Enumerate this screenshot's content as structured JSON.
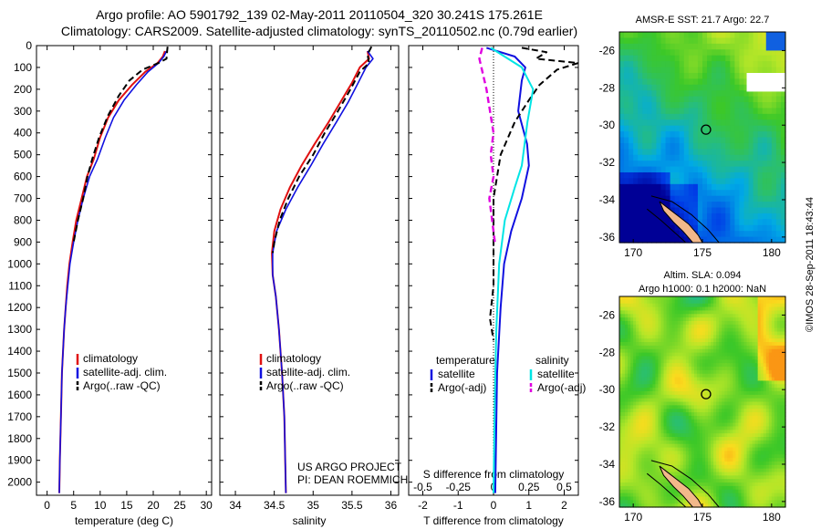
{
  "header": {
    "line1": "Argo profile: AO 5901792_139 02-May-2011 20110504_320 30.241S 175.261E",
    "line2": "Climatology: CARS2009. Satellite-adjusted climatology: synTS_20110502.nc (0.79d earlier)"
  },
  "watermark": "©IMOS 28-Sep-2011 18:43:44",
  "credit": {
    "line1": "US ARGO PROJECT",
    "line2": "PI: DEAN ROEMMICH"
  },
  "colors": {
    "climatology": "#e01010",
    "satellite": "#1010e0",
    "argo": "#000000",
    "satellite_s": "#00e5e5",
    "argo_s": "#e000e0"
  },
  "chart_data": [
    {
      "type": "line",
      "xlabel": "temperature (deg C)",
      "xlim": [
        -2,
        31
      ],
      "xticks": [
        0,
        5,
        10,
        15,
        20,
        25,
        30
      ],
      "ylim": [
        2060,
        0
      ],
      "yticks": [
        0,
        100,
        200,
        300,
        400,
        500,
        600,
        700,
        800,
        900,
        1000,
        1100,
        1200,
        1300,
        1400,
        1500,
        1600,
        1700,
        1800,
        1900,
        2000
      ],
      "legend": [
        "climatology",
        "satellite-adj. clim.",
        "Argo(..raw -QC)"
      ],
      "legend_position": "lower-middle",
      "series": [
        {
          "name": "climatology",
          "points": [
            [
              22.2,
              25
            ],
            [
              21.8,
              50
            ],
            [
              20.8,
              80
            ],
            [
              18.5,
              120
            ],
            [
              16,
              180
            ],
            [
              13.5,
              250
            ],
            [
              11.5,
              330
            ],
            [
              10,
              420
            ],
            [
              8.8,
              520
            ],
            [
              7.5,
              600
            ],
            [
              6.5,
              700
            ],
            [
              5.5,
              800
            ],
            [
              4.8,
              900
            ],
            [
              4.2,
              1000
            ],
            [
              3.8,
              1100
            ],
            [
              3.5,
              1200
            ],
            [
              3.2,
              1300
            ],
            [
              3,
              1400
            ],
            [
              2.8,
              1500
            ],
            [
              2.6,
              1700
            ],
            [
              2.4,
              1900
            ],
            [
              2.3,
              2050
            ]
          ]
        },
        {
          "name": "satellite-adj. clim.",
          "points": [
            [
              22.5,
              25
            ],
            [
              22,
              50
            ],
            [
              21,
              80
            ],
            [
              19,
              120
            ],
            [
              16.8,
              180
            ],
            [
              14.5,
              250
            ],
            [
              12.5,
              330
            ],
            [
              11,
              420
            ],
            [
              9.5,
              520
            ],
            [
              8,
              600
            ],
            [
              6.8,
              700
            ],
            [
              5.8,
              800
            ],
            [
              5,
              900
            ],
            [
              4.3,
              1000
            ],
            [
              3.9,
              1100
            ],
            [
              3.5,
              1200
            ],
            [
              3.2,
              1300
            ],
            [
              3,
              1400
            ],
            [
              2.8,
              1500
            ],
            [
              2.6,
              1700
            ],
            [
              2.4,
              1900
            ],
            [
              2.3,
              2050
            ]
          ]
        },
        {
          "name": "Argo(..raw -QC)",
          "points": [
            [
              22.7,
              5
            ],
            [
              22.6,
              30
            ],
            [
              22.5,
              60
            ],
            [
              21,
              80
            ],
            [
              18,
              110
            ],
            [
              15.5,
              160
            ],
            [
              13.5,
              230
            ],
            [
              11.5,
              320
            ],
            [
              9.8,
              420
            ],
            [
              8.5,
              520
            ],
            [
              7.6,
              600
            ],
            [
              6.8,
              700
            ],
            [
              5.8,
              800
            ],
            [
              5,
              900
            ]
          ]
        }
      ]
    },
    {
      "type": "line",
      "xlabel": "salinity",
      "xlim": [
        33.8,
        36.1
      ],
      "xticks": [
        34,
        34.5,
        35,
        35.5,
        36
      ],
      "ylim": [
        2060,
        0
      ],
      "legend": [
        "climatology",
        "satellite-adj. clim.",
        "Argo(..raw -QC)"
      ],
      "legend_position": "lower-middle",
      "series": [
        {
          "name": "climatology",
          "points": [
            [
              35.7,
              25
            ],
            [
              35.72,
              60
            ],
            [
              35.6,
              100
            ],
            [
              35.5,
              170
            ],
            [
              35.35,
              260
            ],
            [
              35.2,
              350
            ],
            [
              35.02,
              450
            ],
            [
              34.85,
              550
            ],
            [
              34.7,
              650
            ],
            [
              34.58,
              750
            ],
            [
              34.5,
              850
            ],
            [
              34.47,
              950
            ],
            [
              34.48,
              1050
            ],
            [
              34.52,
              1150
            ],
            [
              34.56,
              1300
            ],
            [
              34.6,
              1500
            ],
            [
              34.63,
              1700
            ],
            [
              34.65,
              2050
            ]
          ]
        },
        {
          "name": "satellite-adj. clim.",
          "points": [
            [
              35.7,
              25
            ],
            [
              35.77,
              60
            ],
            [
              35.68,
              100
            ],
            [
              35.58,
              170
            ],
            [
              35.45,
              260
            ],
            [
              35.3,
              350
            ],
            [
              35.13,
              450
            ],
            [
              34.97,
              550
            ],
            [
              34.8,
              650
            ],
            [
              34.65,
              750
            ],
            [
              34.53,
              850
            ],
            [
              34.48,
              950
            ],
            [
              34.48,
              1050
            ],
            [
              34.52,
              1150
            ],
            [
              34.56,
              1300
            ],
            [
              34.6,
              1500
            ],
            [
              34.63,
              1700
            ],
            [
              34.65,
              2050
            ]
          ]
        },
        {
          "name": "Argo(..raw -QC)",
          "points": [
            [
              35.75,
              5
            ],
            [
              35.7,
              40
            ],
            [
              35.72,
              80
            ],
            [
              35.6,
              120
            ],
            [
              35.48,
              200
            ],
            [
              35.32,
              300
            ],
            [
              35.15,
              400
            ],
            [
              35,
              500
            ],
            [
              34.82,
              600
            ],
            [
              34.68,
              700
            ],
            [
              34.57,
              800
            ],
            [
              34.5,
              900
            ],
            [
              34.48,
              950
            ]
          ]
        }
      ]
    },
    {
      "type": "line",
      "xlabel": "T difference from climatology",
      "xlabel2": "S difference from climatology",
      "xlim": [
        -2.4,
        2.4
      ],
      "xticks": [
        -2,
        -1,
        0,
        1,
        2
      ],
      "xticks2": [
        -0.5,
        -0.25,
        0,
        0.25,
        0.5
      ],
      "xticks2_labels": [
        "-0.5",
        "-0.25",
        "0",
        "0.25",
        "0.5"
      ],
      "ylim": [
        2060,
        0
      ],
      "legend_groups": [
        {
          "title": "temperature",
          "entries": [
            "satellite",
            "Argo(-adj)"
          ]
        },
        {
          "title": "salinity",
          "entries": [
            "satellite",
            "Argo(-adj)"
          ]
        }
      ],
      "legend_position": "lower-middle",
      "series": [
        {
          "name": "temperature satellite",
          "points": [
            [
              -0.2,
              10
            ],
            [
              0.6,
              50
            ],
            [
              0.9,
              100
            ],
            [
              0.8,
              160
            ],
            [
              0.7,
              300
            ],
            [
              0.95,
              450
            ],
            [
              1,
              550
            ],
            [
              0.8,
              700
            ],
            [
              0.5,
              850
            ],
            [
              0.3,
              1000
            ],
            [
              0.2,
              1200
            ],
            [
              0.1,
              1500
            ],
            [
              0.05,
              2050
            ]
          ]
        },
        {
          "name": "temperature Argo(-adj)",
          "points": [
            [
              0.8,
              10
            ],
            [
              1.5,
              30
            ],
            [
              1.2,
              60
            ],
            [
              2.4,
              80
            ],
            [
              1.8,
              110
            ],
            [
              1.3,
              180
            ],
            [
              1,
              250
            ],
            [
              0.6,
              350
            ],
            [
              0.2,
              500
            ],
            [
              0,
              700
            ],
            [
              0,
              900
            ],
            [
              0,
              1100
            ],
            [
              -0.1,
              1250
            ],
            [
              0,
              1350
            ]
          ]
        },
        {
          "name": "salinity satellite",
          "points": [
            [
              -0.02,
              10
            ],
            [
              0.2,
              100
            ],
            [
              0.28,
              200
            ],
            [
              0.24,
              350
            ],
            [
              0.22,
              450
            ],
            [
              0.2,
              550
            ],
            [
              0.15,
              650
            ],
            [
              0.08,
              800
            ],
            [
              0.04,
              1000
            ],
            [
              0.02,
              1300
            ],
            [
              0.01,
              1600
            ],
            [
              0,
              2050
            ]
          ]
        },
        {
          "name": "salinity Argo(-adj)",
          "points": [
            [
              -0.08,
              10
            ],
            [
              -0.1,
              60
            ],
            [
              -0.05,
              200
            ],
            [
              0,
              400
            ],
            [
              -0.02,
              500
            ],
            [
              0,
              600
            ],
            [
              -0.03,
              700
            ],
            [
              0.01,
              900
            ]
          ]
        }
      ]
    },
    {
      "type": "heatmap",
      "title": "AMSR-E SST: 21.7 Argo: 22.7",
      "xlim": [
        169,
        181
      ],
      "ylim": [
        -36.3,
        -25
      ],
      "xticks": [
        170,
        175,
        180
      ],
      "yticks": [
        -26,
        -28,
        -30,
        -32,
        -34,
        -36
      ],
      "marker": [
        175.26,
        -30.24
      ]
    },
    {
      "type": "heatmap",
      "title": "Altim. SLA: 0.094",
      "subtitle": "Argo h1000: 0.1 h2000: NaN",
      "xlim": [
        169,
        181
      ],
      "ylim": [
        -36.3,
        -25
      ],
      "xticks": [
        170,
        175,
        180
      ],
      "yticks": [
        -26,
        -28,
        -30,
        -32,
        -34,
        -36
      ],
      "marker": [
        175.26,
        -30.24
      ]
    }
  ]
}
